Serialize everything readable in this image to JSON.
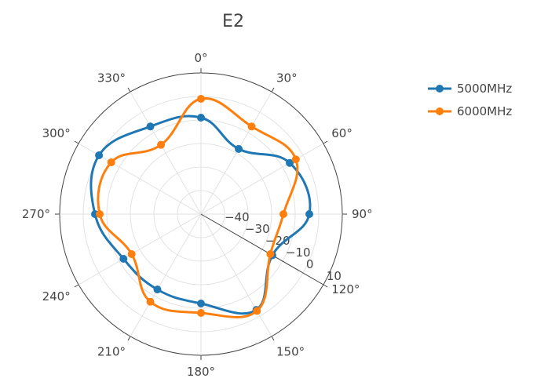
{
  "chart_data": {
    "type": "line",
    "subtype": "polar",
    "title": "E2",
    "angular_axis": {
      "direction": "clockwise",
      "zero_at": "top",
      "tick_labels": [
        "0°",
        "30°",
        "60°",
        "90°",
        "120°",
        "150°",
        "180°",
        "210°",
        "240°",
        "270°",
        "300°",
        "330°"
      ]
    },
    "radial_axis": {
      "range": [
        -50,
        10
      ],
      "angle_deg": 120,
      "tick_values": [
        -40,
        -30,
        -20,
        -10,
        0,
        10
      ],
      "tick_labels": [
        "−40",
        "−30",
        "−20",
        "−10",
        "0",
        "10"
      ]
    },
    "grid": true,
    "legend_position": "top-right",
    "theta": [
      0,
      30,
      60,
      90,
      120,
      150,
      180,
      210,
      240,
      270,
      300,
      330
    ],
    "series": [
      {
        "name": "5000MHz",
        "color": "#1f77b4",
        "r": [
          -9,
          -18,
          -6.5,
          -4,
          -15,
          -3,
          -12,
          -13,
          -12,
          -5,
          0,
          -7
        ]
      },
      {
        "name": "6000MHz",
        "color": "#ff7f0e",
        "r": [
          -1,
          -7,
          -3.5,
          -15,
          -16,
          -2.5,
          -8,
          -7,
          -16,
          -7,
          -6,
          -16
        ]
      }
    ]
  }
}
